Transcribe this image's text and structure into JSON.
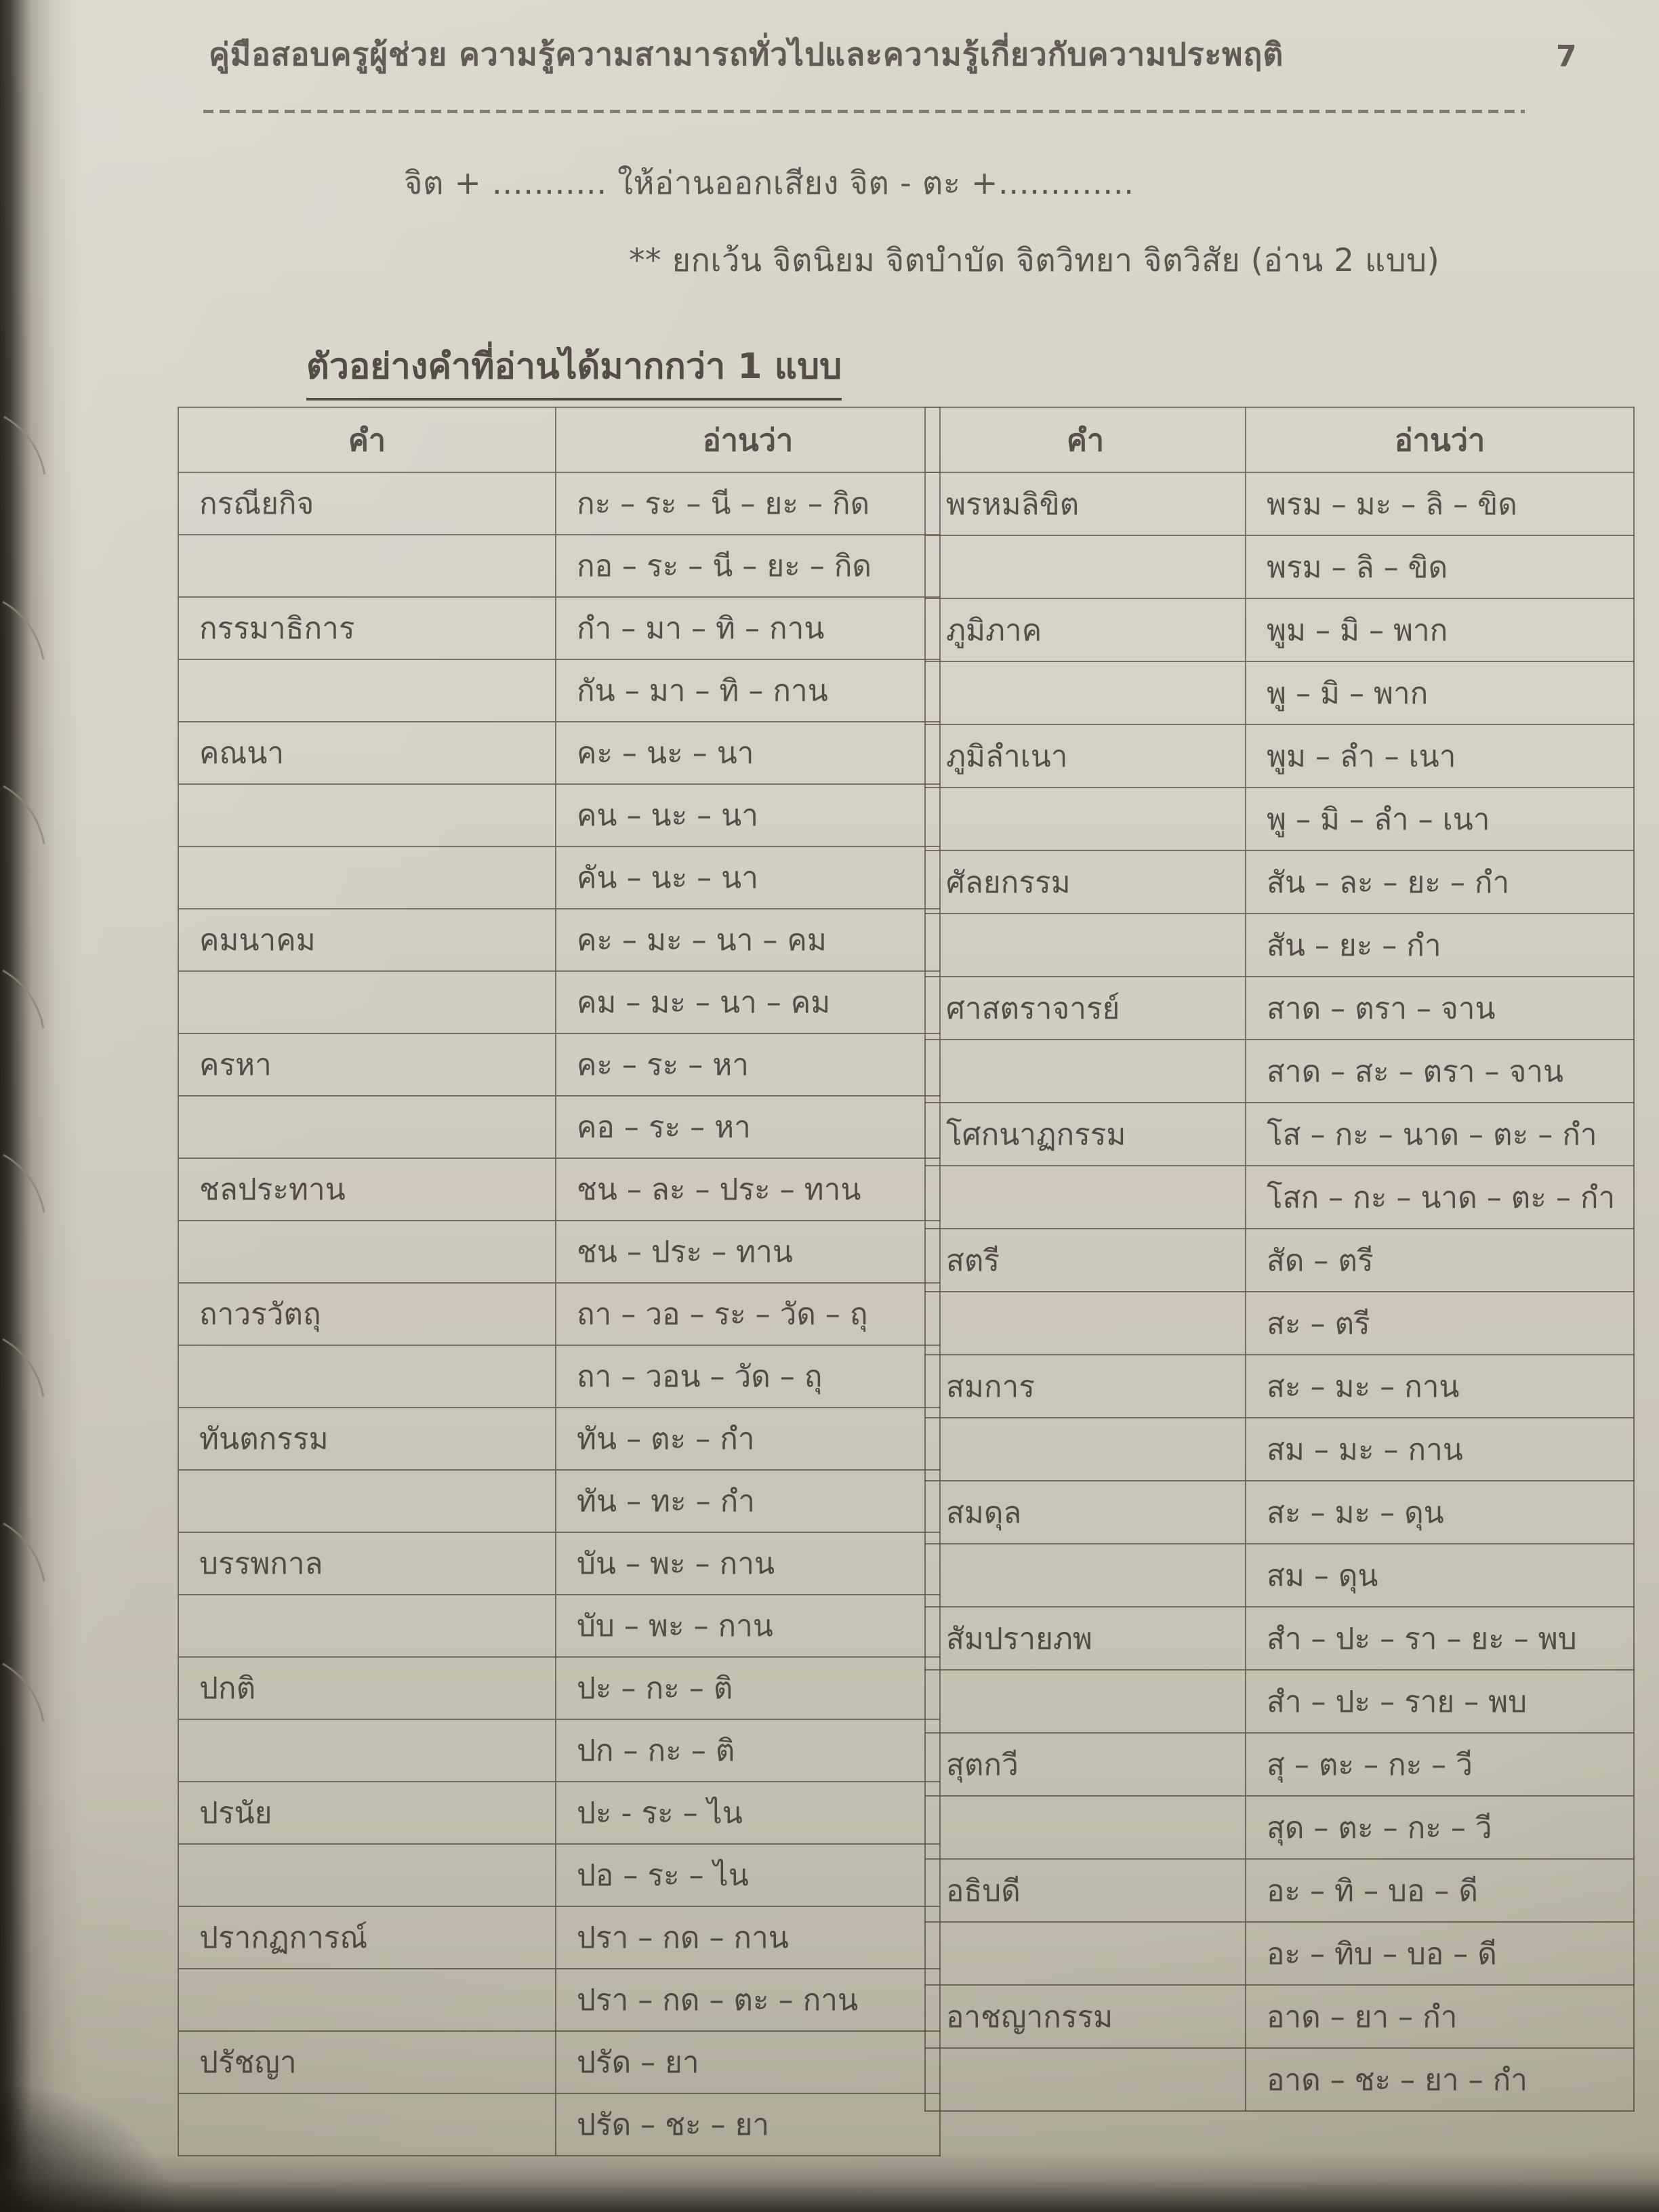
{
  "page": {
    "header_title": "คู่มือสอบครูผู้ช่วย ความรู้ความสามารถทั่วไปและความรู้เกี่ยวกับความประพฤติ",
    "page_number": "7",
    "rule_line": "จิต + ........... ให้อ่านออกเสียง จิต - ตะ +.............",
    "exception_line": "** ยกเว้น จิตนิยม จิตบำบัด จิตวิทยา จิตวิสัย (อ่าน 2 แบบ)",
    "section_heading": "ตัวอย่างคำที่อ่านได้มากกว่า 1 แบบ"
  },
  "tables": {
    "headers": [
      "คำ",
      "อ่านว่า"
    ],
    "left": {
      "rows": [
        [
          "กรณียกิจ",
          "กะ – ระ – นี – ยะ – กิด"
        ],
        [
          "",
          "กอ – ระ – นี – ยะ – กิด"
        ],
        [
          "กรรมาธิการ",
          "กำ – มา – ทิ – กาน"
        ],
        [
          "",
          "กัน – มา – ทิ – กาน"
        ],
        [
          "คณนา",
          "คะ – นะ – นา"
        ],
        [
          "",
          "คน – นะ – นา"
        ],
        [
          "",
          "คัน – นะ – นา"
        ],
        [
          "คมนาคม",
          "คะ – มะ – นา – คม"
        ],
        [
          "",
          "คม – มะ – นา – คม"
        ],
        [
          "ครหา",
          "คะ – ระ – หา"
        ],
        [
          "",
          "คอ – ระ – หา"
        ],
        [
          "ชลประทาน",
          "ชน – ละ – ประ – ทาน"
        ],
        [
          "",
          "ชน – ประ – ทาน"
        ],
        [
          "ถาวรวัตถุ",
          "ถา – วอ – ระ – วัด – ถุ"
        ],
        [
          "",
          "ถา – วอน – วัด – ถุ"
        ],
        [
          "ทันตกรรม",
          "ทัน – ตะ – กำ"
        ],
        [
          "",
          "ทัน – ทะ – กำ"
        ],
        [
          "บรรพกาล",
          "บัน – พะ – กาน"
        ],
        [
          "",
          "บับ – พะ – กาน"
        ],
        [
          "ปกติ",
          "ปะ – กะ – ติ"
        ],
        [
          "",
          "ปก – กะ – ติ"
        ],
        [
          "ปรนัย",
          "ปะ - ระ – ไน"
        ],
        [
          "",
          "ปอ – ระ – ไน"
        ],
        [
          "ปรากฏการณ์",
          "ปรา – กด – กาน"
        ],
        [
          "",
          "ปรา – กด – ตะ – กาน"
        ],
        [
          "ปรัชญา",
          "ปรัด – ยา"
        ],
        [
          "",
          "ปรัด – ชะ – ยา"
        ]
      ]
    },
    "right": {
      "rows": [
        [
          "พรหมลิขิต",
          "พรม – มะ – ลิ – ขิด"
        ],
        [
          "",
          "พรม – ลิ – ขิด"
        ],
        [
          "ภูมิภาค",
          "พูม – มิ – พาก"
        ],
        [
          "",
          "พู – มิ – พาก"
        ],
        [
          "ภูมิลำเนา",
          "พูม – ลำ – เนา"
        ],
        [
          "",
          "พู – มิ – ลำ – เนา"
        ],
        [
          "ศัลยกรรม",
          "สัน – ละ – ยะ – กำ"
        ],
        [
          "",
          "สัน – ยะ – กำ"
        ],
        [
          "ศาสตราจารย์",
          "สาด – ตรา – จาน"
        ],
        [
          "",
          "สาด – สะ – ตรา – จาน"
        ],
        [
          "โศกนาฏกรรม",
          "โส – กะ – นาด – ตะ – กำ"
        ],
        [
          "",
          "โสก – กะ – นาด – ตะ – กำ"
        ],
        [
          "สตรี",
          "สัด – ตรี"
        ],
        [
          "",
          "สะ – ตรี"
        ],
        [
          "สมการ",
          "สะ – มะ – กาน"
        ],
        [
          "",
          "สม – มะ – กาน"
        ],
        [
          "สมดุล",
          "สะ – มะ – ดุน"
        ],
        [
          "",
          "สม – ดุน"
        ],
        [
          "สัมปรายภพ",
          "สำ – ปะ – รา – ยะ – พบ"
        ],
        [
          "",
          "สำ – ปะ – ราย – พบ"
        ],
        [
          "สุตกวี",
          "สุ – ตะ – กะ – วี"
        ],
        [
          "",
          "สุด – ตะ – กะ – วี"
        ],
        [
          "อธิบดี",
          "อะ – ทิ – บอ – ดี"
        ],
        [
          "",
          "อะ – ทิบ – บอ – ดี"
        ],
        [
          "อาชญากรรม",
          "อาด – ยา – กำ"
        ],
        [
          "",
          "อาด – ชะ – ยา – กำ"
        ]
      ]
    }
  },
  "colors": {
    "paper": "#d4d0c2",
    "ink": "#544e45",
    "table_border": "#686052",
    "binding_shadow": "#27231c"
  }
}
